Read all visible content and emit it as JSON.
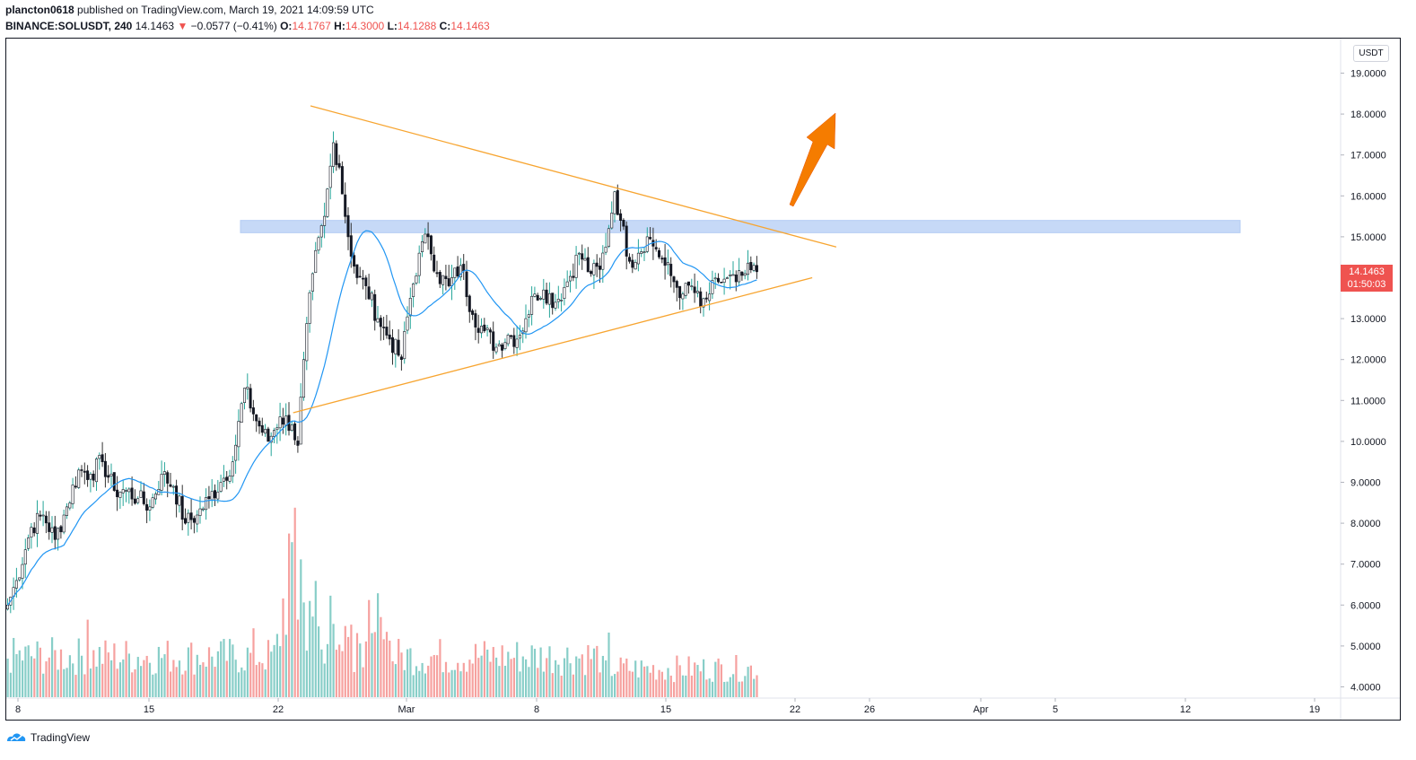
{
  "header": {
    "author": "plancton0618",
    "published_text": "published on TradingView.com, March 19, 2021 14:09:59 UTC",
    "symbol": "BINANCE:SOLUSDT, 240",
    "last": "14.1463",
    "change_arrow": "▼",
    "change": "−0.0577 (−0.41%)",
    "o_label": "O:",
    "o": "14.1767",
    "h_label": "H:",
    "h": "14.3000",
    "l_label": "L:",
    "l": "14.1288",
    "c_label": "C:",
    "c": "14.1463"
  },
  "price_axis": {
    "currency": "USDT",
    "current_price": "14.1463",
    "countdown": "01:50:03"
  },
  "footer": {
    "brand": "TradingView"
  },
  "colors": {
    "up": "#26a69a",
    "down": "#ef5350",
    "ma": "#2196f3",
    "trendline": "#f7a531",
    "zone": "#b3cdf5",
    "arrow": "#f57c00"
  },
  "chart_data": {
    "type": "candlestick",
    "symbol": "SOLUSDT",
    "interval": "240",
    "ylim": [
      3.7,
      19.9
    ],
    "y_ticks": [
      "19.0000",
      "18.0000",
      "17.0000",
      "16.0000",
      "15.0000",
      "14.0000",
      "13.0000",
      "12.0000",
      "11.0000",
      "10.0000",
      "9.0000",
      "8.0000",
      "7.0000",
      "6.0000",
      "5.0000",
      "4.0000"
    ],
    "x_ticks": [
      "8",
      "15",
      "22",
      "Mar",
      "8",
      "15",
      "22",
      "26",
      "Apr",
      "5",
      "12",
      "19"
    ],
    "anchor_closes": [
      [
        0,
        6.0
      ],
      [
        3,
        6.6
      ],
      [
        8,
        7.9
      ],
      [
        12,
        8.2
      ],
      [
        16,
        7.6
      ],
      [
        20,
        8.4
      ],
      [
        24,
        9.3
      ],
      [
        28,
        9.2
      ],
      [
        32,
        9.5
      ],
      [
        36,
        8.8
      ],
      [
        40,
        8.8
      ],
      [
        44,
        8.6
      ],
      [
        48,
        8.4
      ],
      [
        52,
        9.2
      ],
      [
        56,
        8.9
      ],
      [
        60,
        8.0
      ],
      [
        64,
        8.2
      ],
      [
        68,
        8.6
      ],
      [
        72,
        9.0
      ],
      [
        76,
        9.5
      ],
      [
        80,
        11.3
      ],
      [
        84,
        10.5
      ],
      [
        88,
        10.0
      ],
      [
        92,
        10.6
      ],
      [
        96,
        10.4
      ],
      [
        98,
        9.9
      ],
      [
        100,
        12.0
      ],
      [
        103,
        14.1
      ],
      [
        107,
        15.5
      ],
      [
        110,
        17.3
      ],
      [
        112,
        16.7
      ],
      [
        115,
        15.0
      ],
      [
        118,
        14.0
      ],
      [
        121,
        13.8
      ],
      [
        125,
        13.0
      ],
      [
        129,
        12.5
      ],
      [
        133,
        12.0
      ],
      [
        136,
        13.5
      ],
      [
        139,
        14.6
      ],
      [
        142,
        15.0
      ],
      [
        145,
        14.1
      ],
      [
        149,
        13.8
      ],
      [
        153,
        14.3
      ],
      [
        157,
        13.1
      ],
      [
        161,
        12.7
      ],
      [
        165,
        12.3
      ],
      [
        169,
        12.6
      ],
      [
        172,
        12.5
      ],
      [
        175,
        13.0
      ],
      [
        178,
        13.6
      ],
      [
        181,
        13.7
      ],
      [
        185,
        13.4
      ],
      [
        189,
        13.9
      ],
      [
        193,
        14.6
      ],
      [
        197,
        14.1
      ],
      [
        200,
        14.2
      ],
      [
        203,
        15.2
      ],
      [
        205,
        16.1
      ],
      [
        207,
        15.4
      ],
      [
        210,
        14.4
      ],
      [
        213,
        14.6
      ],
      [
        216,
        15.0
      ],
      [
        219,
        14.7
      ],
      [
        222,
        14.3
      ],
      [
        225,
        13.9
      ],
      [
        228,
        13.6
      ],
      [
        231,
        13.8
      ],
      [
        234,
        13.3
      ],
      [
        237,
        13.6
      ],
      [
        240,
        13.9
      ],
      [
        243,
        14.0
      ],
      [
        246,
        13.9
      ],
      [
        249,
        14.1
      ],
      [
        253,
        14.15
      ]
    ],
    "volume_peaks": [
      [
        95,
        3.8
      ],
      [
        96,
        3.6
      ],
      [
        97,
        4.4
      ],
      [
        99,
        3.2
      ],
      [
        104,
        2.7
      ],
      [
        100,
        2.2
      ],
      [
        203,
        1.5
      ],
      [
        83,
        1.6
      ],
      [
        27,
        1.8
      ]
    ],
    "ma_period": 20,
    "annotations": {
      "resistance_zone": [
        15.1,
        15.4
      ],
      "upper_trendline": [
        [
          0.228,
          18.2
        ],
        [
          0.622,
          14.75
        ]
      ],
      "lower_trendline": [
        [
          0.215,
          10.7
        ],
        [
          0.604,
          14.0
        ]
      ],
      "arrow": "up"
    }
  }
}
